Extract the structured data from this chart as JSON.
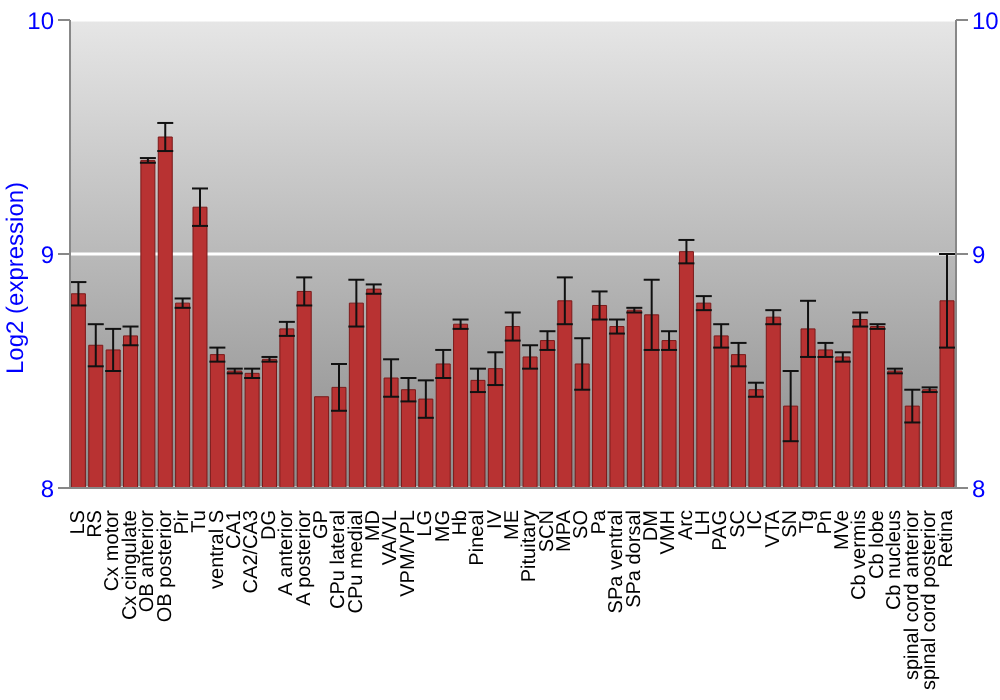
{
  "chart_data": {
    "type": "bar",
    "ylabel": "Log2 (expression)",
    "categories": [
      "LS",
      "RS",
      "Cx motor",
      "Cx cingulate",
      "OB anterior",
      "OB posterior",
      "Pir",
      "Tu",
      "ventral S",
      "CA1",
      "CA2/CA3",
      "DG",
      "A anterior",
      "A posterior",
      "GP",
      "CPu lateral",
      "CPu medial",
      "MD",
      "VA/VL",
      "VPM/VPL",
      "LG",
      "MG",
      "Hb",
      "Pineal",
      "IV",
      "ME",
      "Pituitary",
      "SCN",
      "MPA",
      "SO",
      "Pa",
      "SPa ventral",
      "SPa dorsal",
      "DM",
      "VMH",
      "Arc",
      "LH",
      "PAG",
      "SC",
      "IC",
      "VTA",
      "SN",
      "Tg",
      "Pn",
      "MVe",
      "Cb vermis",
      "Cb lobe",
      "Cb nucleus",
      "spinal cord anterior",
      "spinal cord posterior",
      "Retina"
    ],
    "values": [
      8.83,
      8.61,
      8.59,
      8.65,
      9.4,
      9.5,
      8.79,
      9.2,
      8.57,
      8.5,
      8.49,
      8.55,
      8.68,
      8.84,
      8.39,
      8.43,
      8.79,
      8.85,
      8.47,
      8.42,
      8.38,
      8.53,
      8.7,
      8.46,
      8.51,
      8.69,
      8.56,
      8.63,
      8.8,
      8.53,
      8.78,
      8.69,
      8.76,
      8.74,
      8.63,
      9.01,
      8.79,
      8.65,
      8.57,
      8.42,
      8.73,
      8.35,
      8.68,
      8.59,
      8.56,
      8.72,
      8.69,
      8.5,
      8.35,
      8.42,
      8.8
    ],
    "errors": [
      0.05,
      0.09,
      0.09,
      0.04,
      0.01,
      0.06,
      0.02,
      0.08,
      0.03,
      0.01,
      0.02,
      0.01,
      0.03,
      0.06,
      null,
      0.1,
      0.1,
      0.02,
      0.08,
      0.05,
      0.08,
      0.06,
      0.02,
      0.05,
      0.07,
      0.06,
      0.05,
      0.04,
      0.1,
      0.11,
      0.06,
      0.03,
      0.01,
      0.15,
      0.04,
      0.05,
      0.03,
      0.05,
      0.05,
      0.03,
      0.03,
      0.15,
      0.12,
      0.03,
      0.02,
      0.03,
      0.01,
      0.01,
      0.07,
      0.01,
      0.2
    ],
    "color": "#b83232",
    "ylim": [
      8,
      10
    ],
    "yticks": [
      8,
      9,
      10
    ],
    "y2lim": [
      8,
      10
    ],
    "y2ticks": [
      8,
      9,
      10
    ],
    "grid": "y",
    "legend": false
  }
}
